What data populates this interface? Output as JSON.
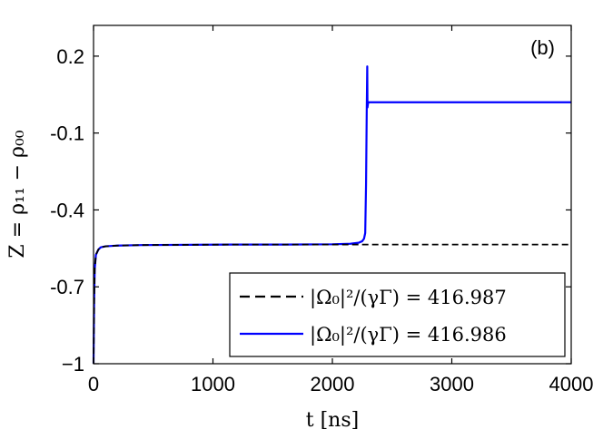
{
  "chart_data": {
    "type": "line",
    "panel_label": "(b)",
    "xlabel": "t [ns]",
    "ylabel": "Z = ρ₁₁ − ρ₀₀",
    "xlim": [
      0,
      4000
    ],
    "ylim": [
      -1,
      0.32
    ],
    "xticks": [
      0,
      1000,
      2000,
      3000,
      4000
    ],
    "xtick_labels": [
      "0",
      "1000",
      "2000",
      "3000",
      "4000"
    ],
    "yticks": [
      0.2,
      -0.1,
      -0.4,
      -0.7,
      -1
    ],
    "ytick_labels": [
      "0.2",
      "-0.1",
      "-0.4",
      "-0.7",
      "−1"
    ],
    "grid": false,
    "legend_position": "bottom-right",
    "series": [
      {
        "name": "|Ω₀|²/(γΓ) = 416.987",
        "color": "#000000",
        "dash": "dashed",
        "x": [
          0,
          2,
          5,
          10,
          20,
          40,
          60,
          100,
          200,
          400,
          800,
          1200,
          1600,
          2000,
          2200,
          2280,
          2300,
          2500,
          3000,
          3500,
          4000
        ],
        "y": [
          -1,
          -0.9,
          -0.75,
          -0.63,
          -0.575,
          -0.555,
          -0.546,
          -0.542,
          -0.539,
          -0.537,
          -0.536,
          -0.535,
          -0.535,
          -0.535,
          -0.535,
          -0.535,
          -0.535,
          -0.535,
          -0.535,
          -0.535,
          -0.535
        ]
      },
      {
        "name": "|Ω₀|²/(γΓ) = 416.986",
        "color": "#0000ff",
        "dash": "solid",
        "x": [
          0,
          2,
          5,
          10,
          20,
          40,
          60,
          100,
          200,
          400,
          800,
          1200,
          1600,
          2000,
          2150,
          2220,
          2250,
          2265,
          2275,
          2282,
          2288,
          2292,
          2294,
          2300,
          2500,
          3000,
          3500,
          4000
        ],
        "y": [
          -1,
          -0.9,
          -0.75,
          -0.63,
          -0.575,
          -0.555,
          -0.546,
          -0.542,
          -0.539,
          -0.537,
          -0.536,
          -0.535,
          -0.535,
          -0.534,
          -0.532,
          -0.528,
          -0.522,
          -0.512,
          -0.49,
          -0.3,
          0.0,
          0.16,
          0.0,
          0.02,
          0.02,
          0.02,
          0.02,
          0.02
        ]
      }
    ]
  }
}
